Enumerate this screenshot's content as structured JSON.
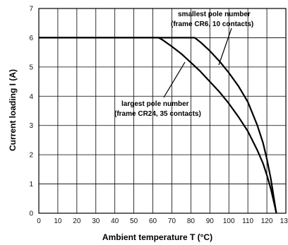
{
  "chart_data": {
    "type": "line",
    "xlabel": "Ambient temperature T (°C)",
    "ylabel": "Current loading I (A)",
    "xlim": [
      0,
      130
    ],
    "ylim": [
      0,
      7
    ],
    "xticks": [
      "0",
      "10",
      "20",
      "30",
      "40",
      "50",
      "60",
      "70",
      "80",
      "90",
      "100",
      "110",
      "120",
      "130"
    ],
    "yticks": [
      "0",
      "1",
      "2",
      "3",
      "4",
      "5",
      "6",
      "7"
    ],
    "grid": true,
    "series": [
      {
        "x": [
          0,
          82,
          85,
          90,
          95,
          100,
          105,
          110,
          115,
          118,
          120,
          122,
          123,
          124,
          125
        ],
        "y": [
          6,
          6,
          5.85,
          5.55,
          5.2,
          4.8,
          4.35,
          3.8,
          3.0,
          2.4,
          1.85,
          1.2,
          0.8,
          0.4,
          0
        ]
      },
      {
        "x": [
          0,
          63,
          65,
          70,
          75,
          80,
          85,
          90,
          95,
          100,
          105,
          110,
          115,
          118,
          120,
          122,
          124,
          125
        ],
        "y": [
          6,
          6,
          5.93,
          5.7,
          5.45,
          5.15,
          4.85,
          4.5,
          4.15,
          3.75,
          3.3,
          2.8,
          2.15,
          1.7,
          1.3,
          0.85,
          0.3,
          0
        ]
      }
    ],
    "annotations": [
      {
        "lines": [
          "smallest pole number",
          "(frame CR6, 10 contacts)"
        ]
      },
      {
        "lines": [
          "largest pole number",
          "(frame CR24, 35 contacts)"
        ]
      }
    ]
  }
}
